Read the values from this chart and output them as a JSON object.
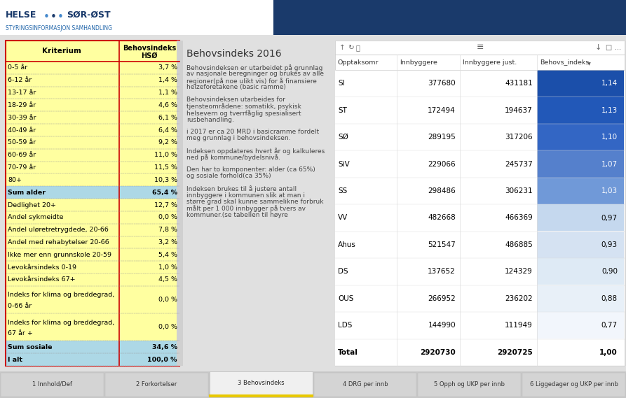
{
  "bg_color": "#e0e0e0",
  "header_white_bg": "#ffffff",
  "header_blue_bg": "#1a3a6b",
  "logo_helse": "HELSE",
  "logo_dots": "•••",
  "logo_sor_ost": "SØR-ØST",
  "logo_sub": "STYRINGSINFORMASJON SAMHANDLING",
  "left_table_bg": "#ffffa0",
  "left_table_border": "#cc0000",
  "sum_row_bg": "#add8e6",
  "left_table_title1": "Kriterium",
  "left_table_title2_line1": "Behovsindeks",
  "left_table_title2_line2": "HSØ",
  "left_rows": [
    [
      "0-5 år",
      "3,7 %"
    ],
    [
      "6-12 år",
      "1,4 %"
    ],
    [
      "13-17 år",
      "1,1 %"
    ],
    [
      "18-29 år",
      "4,6 %"
    ],
    [
      "30-39 år",
      "6,1 %"
    ],
    [
      "40-49 år",
      "6,4 %"
    ],
    [
      "50-59 år",
      "9,2 %"
    ],
    [
      "60-69 år",
      "11,0 %"
    ],
    [
      "70-79 år",
      "11,5 %"
    ],
    [
      "80+",
      "10,3 %"
    ],
    [
      "Sum alder",
      "65,4 %"
    ],
    [
      "Dedlighet 20+",
      "12,7 %"
    ],
    [
      "Andel sykmeidte",
      "0,0 %"
    ],
    [
      "Andel uløretretrygdede, 20-66",
      "7,8 %"
    ],
    [
      "Andel med rehabytelser 20-66",
      "3,2 %"
    ],
    [
      "Ikke mer enn grunnskole 20-59",
      "5,4 %"
    ],
    [
      "Levokårsindeks 0-19",
      "1,0 %"
    ],
    [
      "Levokårsindeks 67+",
      "4,5 %"
    ],
    [
      "Indeks for klima og breddegrad,\n0-66 år",
      "0,0 %"
    ],
    [
      "Indeks for klima og breddegrad,\n67 år +",
      "0,0 %"
    ],
    [
      "Sum sosiale",
      "34,6 %"
    ],
    [
      "I alt",
      "100,0 %"
    ]
  ],
  "sum_rows": [
    10,
    20,
    21
  ],
  "text_block_title": "Behovsindeks 2016",
  "text_paragraphs": [
    "Behovsindeksen er utarbeidet på grunnlag\nav nasjonale beregninger og brukes av alle\nregioner(på noe ulikt vis) for å finansiere\nhelzeforetakene (basic ramme)",
    "Behovsindeksen utarbeides for\ntjensteområdene: somatikk, psykisk\nhelsevern og tverrfåglig spesialisert\nrusbehandling.",
    "i 2017 er ca 20 MRD i basicramme fordelt\nmeg grunnlag i behovsindeksen.",
    "Indeksen oppdateres hvert år og kalkuleres\nned på kommune/bydelsnivå.",
    "Den har to komponenter: alder (ca 65%)\nog sosiale forhold(ca 35%)",
    "Indeksen brukes til å justere antall\ninnbyggere i kommunen slik at man i\nstørre grad skal kunne sammelikne forbruk\nmålt per 1 000 innbygger på tvers av\nkommuner.(se tabellen til høyre"
  ],
  "right_table_headers": [
    "Opptaksomr",
    "Innbyggere",
    "Innbyggere just.",
    "Behovs_indeks"
  ],
  "right_table_rows": [
    [
      "SI",
      "377680",
      "431181",
      "1,14"
    ],
    [
      "ST",
      "172494",
      "194637",
      "1,13"
    ],
    [
      "SØ",
      "289195",
      "317206",
      "1,10"
    ],
    [
      "SiV",
      "229066",
      "245737",
      "1,07"
    ],
    [
      "SS",
      "298486",
      "306231",
      "1,03"
    ],
    [
      "VV",
      "482668",
      "466369",
      "0,97"
    ],
    [
      "Ahus",
      "521547",
      "486885",
      "0,93"
    ],
    [
      "DS",
      "137652",
      "124329",
      "0,90"
    ],
    [
      "OUS",
      "266952",
      "236202",
      "0,88"
    ],
    [
      "LDS",
      "144990",
      "111949",
      "0,77"
    ],
    [
      "Total",
      "2920730",
      "2920725",
      "1,00"
    ]
  ],
  "right_table_colors": [
    "#1b4faa",
    "#2258b8",
    "#3366c4",
    "#5580cc",
    "#7099d8",
    "#c5d8ee",
    "#d5e2f2",
    "#deeaf5",
    "#e8f0f8",
    "#f2f6fc",
    "#ffffff"
  ],
  "right_text_colors": [
    "#ffffff",
    "#ffffff",
    "#ffffff",
    "#ffffff",
    "#ffffff",
    "#000000",
    "#000000",
    "#000000",
    "#000000",
    "#000000",
    "#000000"
  ],
  "tab_labels": [
    "1 Innhold/Def",
    "2 Forkortelser",
    "3 Behovsindeks",
    "4 DRG per innb",
    "5 Opph og UKP per innb",
    "6 Liggedager og UKP per innb"
  ],
  "active_tab": 2,
  "tab_accent_color": "#e8c800"
}
